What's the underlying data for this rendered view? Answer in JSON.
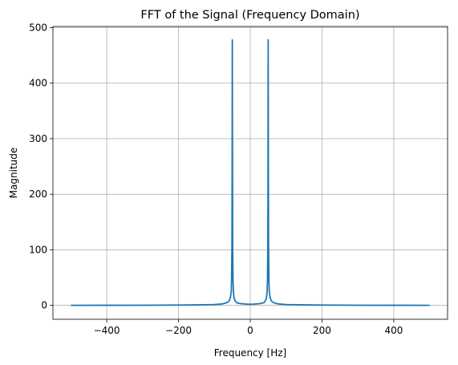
{
  "chart_data": {
    "type": "line",
    "title": "FFT of the Signal (Frequency Domain)",
    "xlabel": "Frequency [Hz]",
    "ylabel": "Magnitude",
    "xlim": [
      -550,
      550
    ],
    "ylim": [
      -25,
      502
    ],
    "xticks": [
      -400,
      -200,
      0,
      200,
      400
    ],
    "xtick_labels": [
      "−400",
      "−200",
      "0",
      "200",
      "400"
    ],
    "yticks": [
      0,
      100,
      200,
      300,
      400,
      500
    ],
    "ytick_labels": [
      "0",
      "100",
      "200",
      "300",
      "400",
      "500"
    ],
    "grid": true,
    "series": [
      {
        "color": "#1f77b4",
        "x": [
          -500,
          -400,
          -300,
          -200,
          -150,
          -100,
          -80,
          -70,
          -62,
          -58,
          -55,
          -53,
          -52,
          -51,
          -50.5,
          -50,
          -49.5,
          -49,
          -48,
          -47,
          -45,
          -42,
          -38,
          -30,
          -20,
          -10,
          -5,
          0,
          5,
          10,
          20,
          30,
          38,
          42,
          45,
          47,
          48,
          49,
          49.5,
          50,
          50.5,
          51,
          52,
          53,
          55,
          58,
          62,
          70,
          80,
          100,
          150,
          200,
          300,
          400,
          500
        ],
        "y": [
          0.1,
          0.2,
          0.3,
          0.6,
          0.9,
          1.5,
          2.5,
          3.8,
          6,
          9,
          15,
          25,
          45,
          110,
          250,
          478,
          250,
          110,
          45,
          25,
          13,
          8,
          5,
          3.5,
          2.8,
          2.3,
          2.1,
          2.0,
          2.1,
          2.3,
          2.8,
          3.5,
          5,
          8,
          13,
          25,
          45,
          110,
          250,
          478,
          250,
          110,
          45,
          25,
          15,
          9,
          6,
          3.8,
          2.5,
          1.5,
          0.9,
          0.6,
          0.3,
          0.2,
          0.1
        ]
      }
    ]
  }
}
